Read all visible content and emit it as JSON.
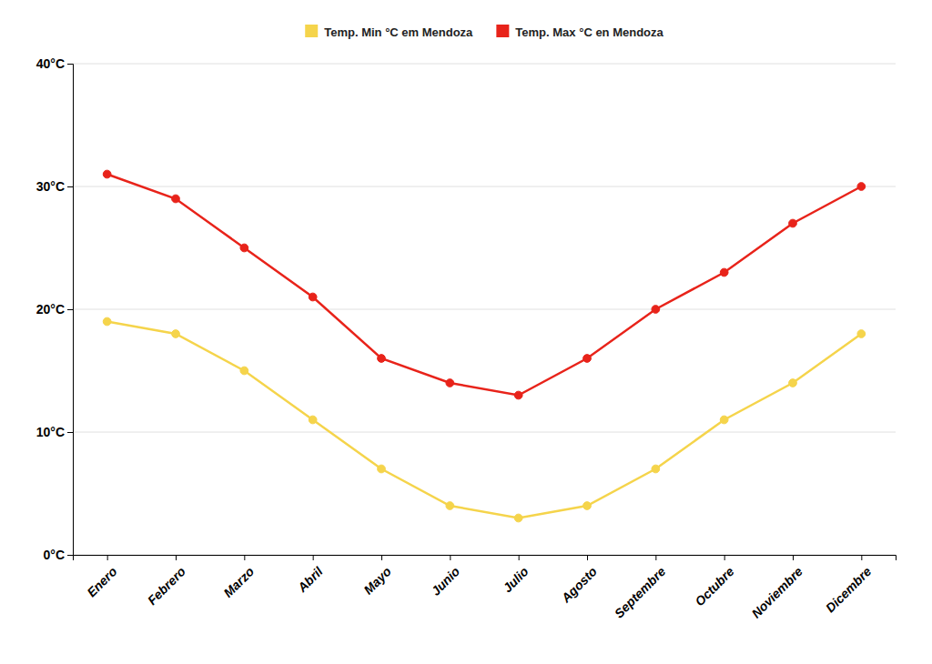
{
  "chart_data": {
    "type": "line",
    "categories": [
      "Enero",
      "Febrero",
      "Marzo",
      "Abril",
      "Mayo",
      "Junio",
      "Julio",
      "Agosto",
      "Septembre",
      "Octubre",
      "Noviembre",
      "Dicembre"
    ],
    "series": [
      {
        "name": "Temp. Min °C em Mendoza",
        "color": "#F5D44B",
        "marker": "circle",
        "values": [
          19,
          18,
          15,
          11,
          7,
          4,
          3,
          4,
          7,
          11,
          14,
          18
        ]
      },
      {
        "name": "Temp. Max °C en Mendoza",
        "color": "#E8231A",
        "marker": "circle",
        "values": [
          31,
          29,
          25,
          21,
          16,
          14,
          13,
          16,
          20,
          23,
          27,
          30
        ]
      }
    ],
    "ylim": [
      0,
      40
    ],
    "yticks": [
      {
        "value": 0,
        "label": "0°C"
      },
      {
        "value": 10,
        "label": "10°C"
      },
      {
        "value": 20,
        "label": "20°C"
      },
      {
        "value": 30,
        "label": "30°C"
      },
      {
        "value": 40,
        "label": "40°C"
      }
    ],
    "grid": true,
    "legend": "top"
  }
}
